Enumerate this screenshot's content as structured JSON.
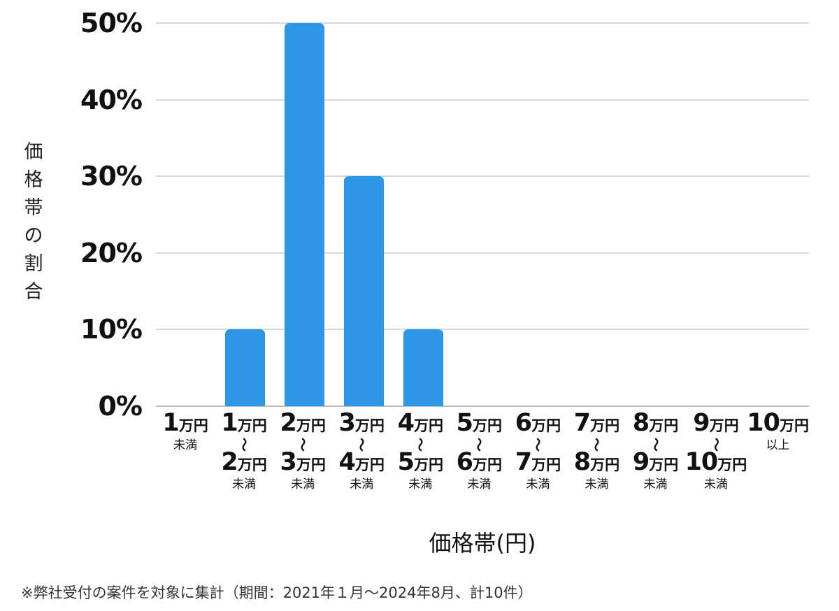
{
  "chart_data": {
    "type": "bar",
    "title": "",
    "xlabel": "価格帯(円)",
    "ylabel": "価格帯の割合",
    "categories": [
      "1万円未満",
      "1万円～2万円未満",
      "2万円～3万円未満",
      "3万円～4万円未満",
      "4万円～5万円未満",
      "5万円～6万円未満",
      "6万円～7万円未満",
      "7万円～8万円未満",
      "8万円～9万円未満",
      "9万円～10万円未満",
      "10万円以上"
    ],
    "categories_rich": [
      {
        "from": "1",
        "to": null,
        "suffix": "未満"
      },
      {
        "from": "1",
        "to": "2",
        "suffix": "未満"
      },
      {
        "from": "2",
        "to": "3",
        "suffix": "未満"
      },
      {
        "from": "3",
        "to": "4",
        "suffix": "未満"
      },
      {
        "from": "4",
        "to": "5",
        "suffix": "未満"
      },
      {
        "from": "5",
        "to": "6",
        "suffix": "未満"
      },
      {
        "from": "6",
        "to": "7",
        "suffix": "未満"
      },
      {
        "from": "7",
        "to": "8",
        "suffix": "未満"
      },
      {
        "from": "8",
        "to": "9",
        "suffix": "未満"
      },
      {
        "from": "9",
        "to": "10",
        "suffix": "未満"
      },
      {
        "from": "10",
        "to": null,
        "suffix": "以上"
      }
    ],
    "unit": "万円",
    "tilde": "〜",
    "values": [
      0,
      10,
      50,
      30,
      10,
      0,
      0,
      0,
      0,
      0,
      0
    ],
    "ylim": [
      0,
      50
    ],
    "yticks": [
      "0%",
      "10%",
      "20%",
      "30%",
      "40%",
      "50%"
    ],
    "grid": true,
    "legend": "none",
    "bar_color": "#2D96E6",
    "grid_color": "#D8D8D8",
    "baseline_color": "#BDBDBD"
  },
  "footer": {
    "note": "※弊社受付の案件を対象に集計（期間：2021年１月～2024年8月、計10件）"
  }
}
